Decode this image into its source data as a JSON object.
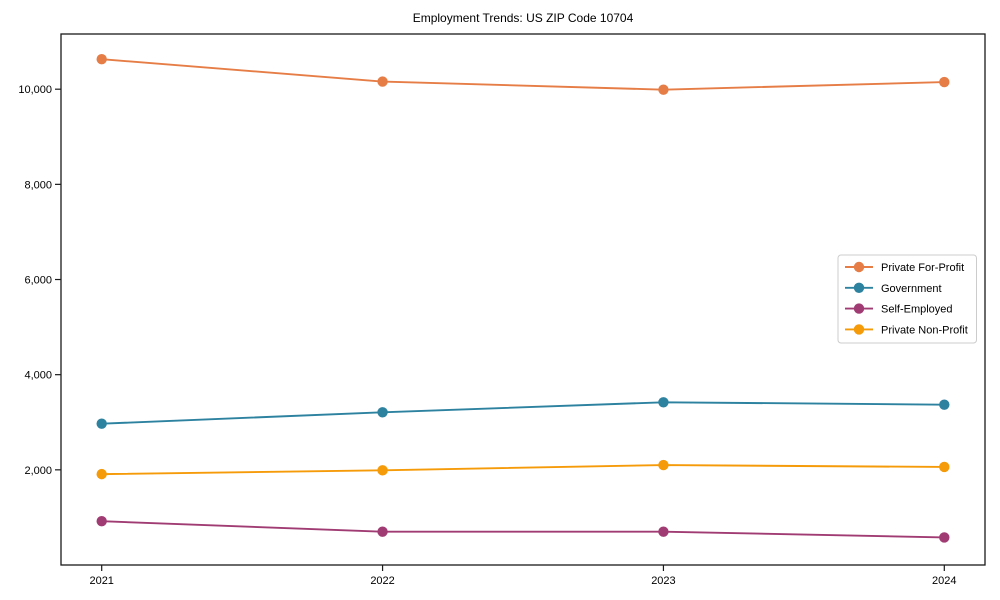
{
  "figure": {
    "title": "Employment Trends: US ZIP Code 10704"
  },
  "chart_data": {
    "type": "line",
    "title": "Employment Trends: US ZIP Code 10704",
    "xlabel": "",
    "ylabel": "",
    "categories": [
      "2021",
      "2022",
      "2023",
      "2024"
    ],
    "series": [
      {
        "name": "Private For-Profit",
        "color": "#E67D46",
        "values": [
          10630,
          10160,
          9990,
          10150
        ]
      },
      {
        "name": "Government",
        "color": "#2D82A0",
        "values": [
          2970,
          3210,
          3420,
          3370
        ]
      },
      {
        "name": "Self-Employed",
        "color": "#A03C73",
        "values": [
          920,
          700,
          700,
          580
        ]
      },
      {
        "name": "Private Non-Profit",
        "color": "#F59B0A",
        "values": [
          1910,
          1990,
          2100,
          2060
        ]
      }
    ],
    "y_ticks": [
      2000,
      4000,
      6000,
      8000,
      10000
    ],
    "y_tick_labels": [
      "2,000",
      "4,000",
      "6,000",
      "8,000",
      "10,000"
    ],
    "ylim": [
      0,
      11160
    ],
    "grid": false,
    "legend_position": "center-right",
    "legend_entries": [
      "Private For-Profit",
      "Government",
      "Self-Employed",
      "Private Non-Profit"
    ],
    "marker": "circle",
    "axis_color": "#1a1a1a"
  }
}
